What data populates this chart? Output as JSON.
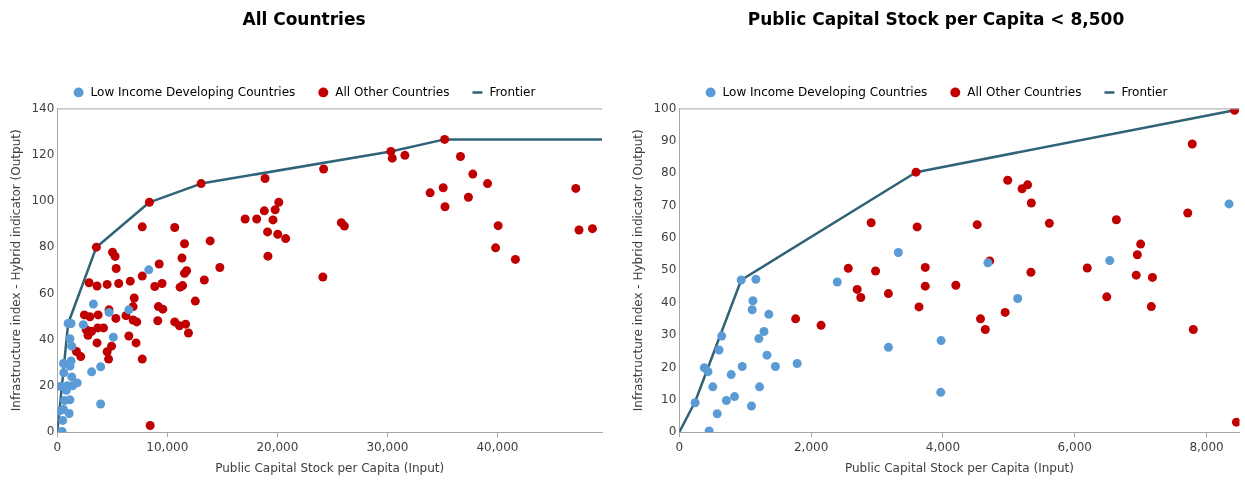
{
  "chart_data": [
    {
      "type": "scatter",
      "title": "All Countries",
      "xlabel": "Public Capital Stock per Capita (Input)",
      "ylabel": "Infrastructure index - Hybrid indicator (Output)",
      "xlim": [
        0,
        49500
      ],
      "ylim": [
        0,
        140
      ],
      "xticks": [
        0,
        {
          "value": 10000,
          "label": "10,000"
        },
        {
          "value": 20000,
          "label": "20,000"
        },
        {
          "value": 30000,
          "label": "30,000"
        },
        {
          "value": 40000,
          "label": "40,000"
        }
      ],
      "yticks": [
        0,
        20,
        40,
        60,
        80,
        100,
        120,
        140
      ],
      "legend": "top",
      "marker": "circle",
      "grid": false,
      "series": [
        {
          "name": "Low Income Developing Countries",
          "color": "#5b9bd5",
          "x": [
            985,
            1250,
            1150,
            1310,
            560,
            1250,
            1150,
            590,
            1310,
            1810,
            1380,
            920,
            260,
            820,
            1150,
            660,
            160,
            560,
            1080,
            490,
            430,
            2360,
            3280,
            4700,
            5090,
            6500,
            8310,
            3120,
            3940,
            3940
          ],
          "values": [
            47,
            47,
            40.4,
            37.2,
            29.7,
            30.8,
            28.6,
            25.7,
            23.9,
            21.3,
            20.1,
            20.1,
            19.8,
            18.1,
            14,
            13.7,
            9.1,
            9.8,
            8.1,
            5.1,
            0.3,
            46.5,
            55.4,
            51.8,
            41.1,
            52.9,
            70.2,
            26.1,
            28.3,
            12.2
          ]
        },
        {
          "name": "All Other Countries",
          "color": "#c00000",
          "x": [
            3550,
            8370,
            13070,
            7720,
            10670,
            11560,
            13890,
            11330,
            14770,
            5020,
            5250,
            5350,
            2890,
            3610,
            4530,
            5580,
            6630,
            7720,
            9260,
            8860,
            9520,
            11160,
            11390,
            11560,
            11750,
            13360,
            6990,
            6890,
            9190,
            9590,
            12540,
            2460,
            2960,
            3710,
            4700,
            5320,
            6240,
            2630,
            3120,
            2790,
            3680,
            4200,
            6890,
            7220,
            6500,
            7160,
            3610,
            9130,
            10670,
            11100,
            11660,
            11920,
            4530,
            4930,
            4660,
            7720,
            1740,
            2130,
            8440,
            18880,
            17070,
            18120,
            18810,
            19800,
            20130,
            19600,
            19110,
            20030,
            20750,
            19140,
            24200,
            24130,
            25810,
            26090,
            30310,
            30440,
            31590,
            35200,
            36640,
            37760,
            39100,
            33880,
            35070,
            35230,
            37360,
            40060,
            39830,
            41630,
            47120,
            47410,
            48630
          ],
          "values": [
            80,
            99.4,
            107.5,
            88.8,
            88.5,
            81.5,
            82.7,
            75.3,
            71.2,
            77.8,
            76,
            70.8,
            64.6,
            63.2,
            63.9,
            64.3,
            65.3,
            67.5,
            72.7,
            63,
            64.3,
            62.7,
            63.4,
            68.7,
            69.8,
            65.8,
            58,
            54.3,
            54.3,
            53.2,
            56.7,
            50.7,
            49.9,
            50.7,
            52.9,
            49.2,
            50.4,
            44.3,
            43.6,
            41.9,
            45.1,
            45.1,
            48.5,
            47.7,
            41.6,
            38.6,
            38.6,
            48.2,
            47.7,
            46,
            46.7,
            42.9,
            34.8,
            37.2,
            31.6,
            31.6,
            34.9,
            32.7,
            2.9,
            109.7,
            92.2,
            92.2,
            95.7,
            96.2,
            99.4,
            91.8,
            86.6,
            85.6,
            83.7,
            76.1,
            113.8,
            67.1,
            90.6,
            89.1,
            121.4,
            118.5,
            119.7,
            126.6,
            119.2,
            111.6,
            107.5,
            103.5,
            105.7,
            97.5,
            101.6,
            89.3,
            79.7,
            74.7,
            105.4,
            87.4,
            88
          ]
        },
        {
          "name": "Frontier",
          "type": "line",
          "color": "#2e6378",
          "marker": "none",
          "x": [
            0,
            985,
            3550,
            8370,
            13070,
            30310,
            35200,
            49500
          ],
          "values": [
            0,
            47,
            80,
            99.4,
            107.5,
            121.4,
            126.6,
            126.6
          ]
        }
      ]
    },
    {
      "type": "scatter",
      "title": "Public Capital Stock per Capita < 8,500",
      "xlabel": "Public Capital Stock per Capita (Input)",
      "ylabel": "Infrastructure index - Hybrid indicator (Output)",
      "xlim": [
        0,
        8500
      ],
      "ylim": [
        0,
        100
      ],
      "xticks": [
        0,
        {
          "value": 2000,
          "label": "2,000"
        },
        {
          "value": 4000,
          "label": "4,000"
        },
        {
          "value": 6000,
          "label": "6,000"
        },
        {
          "value": 8000,
          "label": "8,000"
        }
      ],
      "yticks": [
        0,
        10,
        20,
        30,
        40,
        50,
        60,
        70,
        80,
        90,
        100
      ],
      "legend": "top",
      "marker": "circle",
      "grid": false,
      "series": [
        {
          "name": "Low Income Developing Countries",
          "color": "#5b9bd5",
          "x": [
            240,
            380,
            436,
            508,
            575,
            453,
            603,
            643,
            715,
            788,
            838,
            955,
            939,
            1162,
            1117,
            1106,
            1358,
            1285,
            1207,
            1330,
            1458,
            1218,
            1095,
            1788,
            2397,
            3324,
            3173,
            3972,
            3967,
            4682,
            5134,
            6531,
            8341
          ],
          "values": [
            9.1,
            19.9,
            18.7,
            14,
            5.7,
            0.4,
            25.4,
            29.7,
            9.8,
            17.8,
            11,
            20.3,
            47,
            47.2,
            40.6,
            37.8,
            36.4,
            31.1,
            28.9,
            23.8,
            20.3,
            14,
            8.1,
            21.2,
            46.4,
            55.5,
            26.2,
            28.3,
            12.3,
            52.3,
            41.3,
            53,
            70.5
          ]
        },
        {
          "name": "All Other Countries",
          "color": "#c00000",
          "x": [
            1765,
            2151,
            2564,
            2911,
            2978,
            2699,
            2754,
            3173,
            3592,
            3609,
            3732,
            3732,
            3637,
            4196,
            4520,
            4710,
            4570,
            4643,
            4944,
            4983,
            5201,
            5285,
            5341,
            5335,
            5615,
            6190,
            6486,
            6632,
            7000,
            6950,
            6933,
            7179,
            7162,
            7715,
            7783,
            7799,
            8425,
            8453
          ],
          "values": [
            35,
            33,
            50.6,
            64.7,
            49.8,
            44.1,
            41.6,
            42.8,
            80.3,
            63.4,
            50.9,
            45.1,
            38.7,
            45.4,
            64.1,
            52.9,
            35,
            31.7,
            37,
            77.8,
            75.2,
            76.4,
            70.8,
            49.4,
            64.5,
            50.7,
            41.8,
            65.6,
            58.1,
            54.8,
            48.5,
            47.8,
            38.8,
            67.7,
            89,
            31.7,
            99.4,
            3.1
          ]
        },
        {
          "name": "Frontier",
          "type": "line",
          "color": "#2e6378",
          "marker": "none",
          "x": [
            0,
            240,
            939,
            3592,
            8425
          ],
          "values": [
            0,
            9.4,
            47,
            80.3,
            99.4
          ]
        }
      ]
    }
  ]
}
